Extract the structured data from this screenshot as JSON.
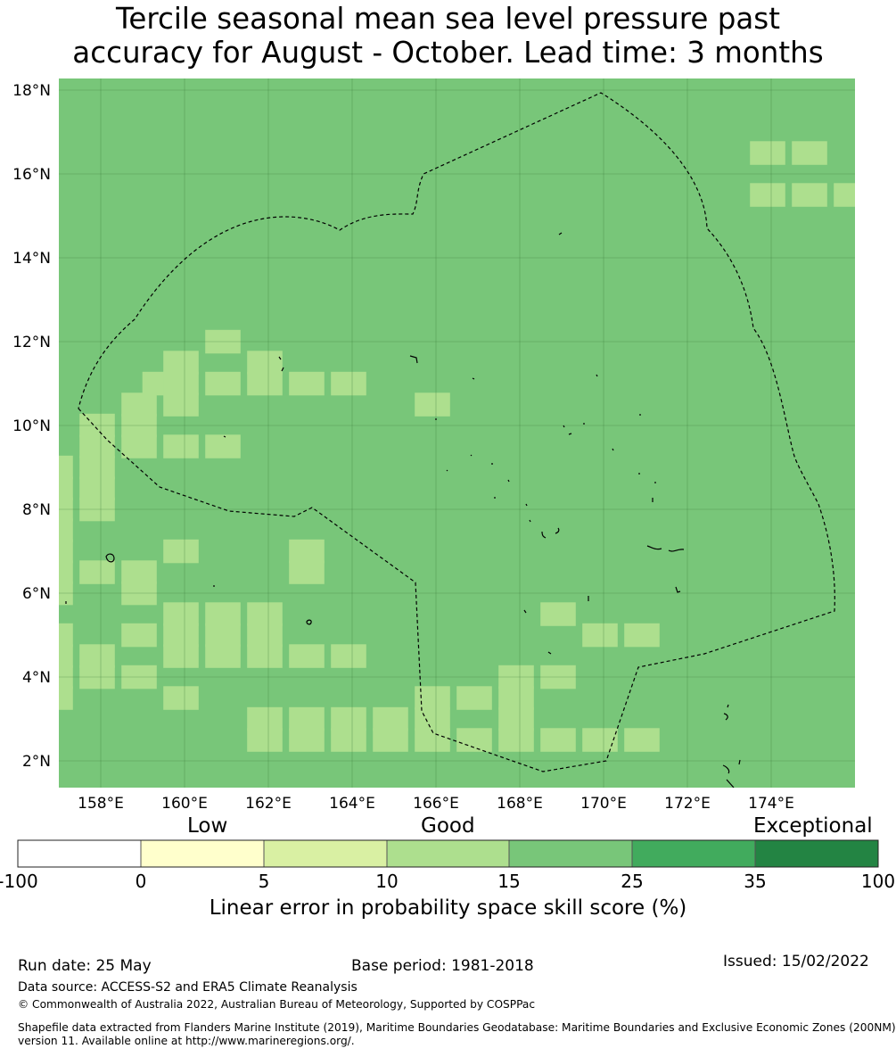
{
  "title": {
    "line1": "Tercile seasonal mean sea level pressure past",
    "line2": "accuracy for August - October. Lead time: 3 months"
  },
  "map": {
    "lon_labels": [
      "158°E",
      "160°E",
      "162°E",
      "164°E",
      "166°E",
      "168°E",
      "170°E",
      "172°E",
      "174°E"
    ],
    "lat_labels": [
      "18°N",
      "16°N",
      "14°N",
      "12°N",
      "10°N",
      "8°N",
      "6°N",
      "4°N",
      "2°N"
    ],
    "lon_values": [
      158,
      160,
      162,
      164,
      166,
      168,
      170,
      172,
      174
    ],
    "lat_values": [
      18,
      16,
      14,
      12,
      10,
      8,
      6,
      4,
      2
    ],
    "extent": {
      "lon_min": 157,
      "lon_max": 176,
      "lat_min": 1.4,
      "lat_max": 18.3
    },
    "background_category": "15-25",
    "colors": {
      "good_10_15": "#addf8e",
      "good_15_25": "#78c679",
      "grid": "#3a7a3a",
      "boundary": "#000000"
    },
    "skill_10_15_cells_lonlat": [
      [
        174,
        16.5
      ],
      [
        175,
        16.5
      ],
      [
        174,
        15.5
      ],
      [
        175,
        15.5
      ],
      [
        176,
        15.5
      ],
      [
        161,
        12
      ],
      [
        160,
        11.5
      ],
      [
        162,
        11.5
      ],
      [
        159.5,
        11
      ],
      [
        160,
        11
      ],
      [
        161,
        11
      ],
      [
        162,
        11
      ],
      [
        163,
        11
      ],
      [
        164,
        11
      ],
      [
        159,
        10.5
      ],
      [
        160,
        10.5
      ],
      [
        166,
        10.5
      ],
      [
        158,
        10
      ],
      [
        159,
        10
      ],
      [
        158,
        9.5
      ],
      [
        159,
        9.5
      ],
      [
        160,
        9.5
      ],
      [
        161,
        9.5
      ],
      [
        157,
        9
      ],
      [
        158,
        9
      ],
      [
        157,
        8.5
      ],
      [
        158,
        8.5
      ],
      [
        157,
        8
      ],
      [
        158,
        8
      ],
      [
        157,
        7.5
      ],
      [
        157,
        7
      ],
      [
        160,
        7
      ],
      [
        163,
        7
      ],
      [
        157,
        6.5
      ],
      [
        158,
        6.5
      ],
      [
        159,
        6.5
      ],
      [
        163,
        6.5
      ],
      [
        157,
        6
      ],
      [
        159,
        6
      ],
      [
        160,
        5.5
      ],
      [
        161,
        5.5
      ],
      [
        162,
        5.5
      ],
      [
        157,
        5
      ],
      [
        159,
        5
      ],
      [
        160,
        5
      ],
      [
        161,
        5
      ],
      [
        162,
        5
      ],
      [
        169,
        5.5
      ],
      [
        170,
        5
      ],
      [
        171,
        5
      ],
      [
        157,
        4.5
      ],
      [
        158,
        4.5
      ],
      [
        160,
        4.5
      ],
      [
        161,
        4.5
      ],
      [
        162,
        4.5
      ],
      [
        163,
        4.5
      ],
      [
        164,
        4.5
      ],
      [
        157,
        4
      ],
      [
        158,
        4
      ],
      [
        159,
        4
      ],
      [
        168,
        4
      ],
      [
        169,
        4
      ],
      [
        157,
        3.5
      ],
      [
        160,
        3.5
      ],
      [
        166,
        3.5
      ],
      [
        167,
        3.5
      ],
      [
        168,
        3.5
      ],
      [
        162,
        3
      ],
      [
        163,
        3
      ],
      [
        164,
        3
      ],
      [
        165,
        3
      ],
      [
        166,
        3
      ],
      [
        168,
        3
      ],
      [
        162,
        2.5
      ],
      [
        163,
        2.5
      ],
      [
        164,
        2.5
      ],
      [
        165,
        2.5
      ],
      [
        166,
        2.5
      ],
      [
        167,
        2.5
      ],
      [
        168,
        2.5
      ],
      [
        169,
        2.5
      ],
      [
        170,
        2.5
      ],
      [
        171,
        2.5
      ]
    ]
  },
  "colorbar": {
    "category_labels": [
      "Low",
      "Good",
      "Exceptional"
    ],
    "tick_labels": [
      "-100",
      "0",
      "5",
      "10",
      "15",
      "25",
      "35",
      "100"
    ],
    "colors": [
      "#ffffff",
      "#ffffcc",
      "#d9f0a3",
      "#addf8e",
      "#78c679",
      "#41ab5d",
      "#238443"
    ],
    "xlabel": "Linear error in probability space skill score (%)"
  },
  "footer": {
    "run_date": "Run date: 25 May",
    "base_period": "Base period: 1981-2018",
    "issued": "Issued: 15/02/2022",
    "data_source": "Data source: ACCESS-S2 and ERA5 Climate Reanalysis",
    "copyright": "© Commonwealth of Australia 2022, Australian Bureau of Meteorology, Supported by COSPPac",
    "shapefile_line1": "Shapefile data extracted from Flanders Marine Institute (2019), Maritime Boundaries Geodatabase: Maritime Boundaries and Exclusive Economic Zones (200NM),",
    "shapefile_line2": "version 11. Available online at http://www.marineregions.org/."
  }
}
